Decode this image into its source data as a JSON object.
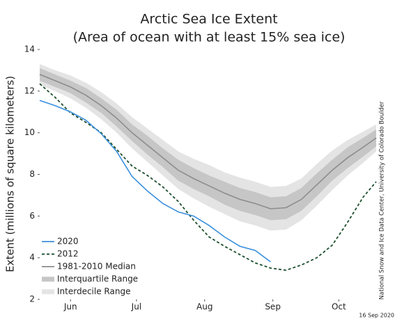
{
  "chart_data": {
    "type": "line",
    "title": "Arctic Sea Ice Extent",
    "subtitle": "(Area of ocean with at least 15% sea ice)",
    "ylabel": "Extent (millions of square kilometers)",
    "credit": "National Snow and Ice Data Center, University of Colorado Boulder",
    "date": "16 Sep 2020",
    "x": [
      152,
      159,
      166,
      173,
      180,
      187,
      194,
      201,
      208,
      215,
      222,
      229,
      236,
      243,
      250,
      257,
      264,
      271,
      278,
      285,
      292,
      299,
      305
    ],
    "xlim": [
      152,
      305
    ],
    "xticks": [
      {
        "value": 166,
        "label": "Jun"
      },
      {
        "value": 196,
        "label": "Jul"
      },
      {
        "value": 227,
        "label": "Aug"
      },
      {
        "value": 258,
        "label": "Sep"
      },
      {
        "value": 288,
        "label": "Oct"
      }
    ],
    "ylim": [
      2,
      14
    ],
    "yticks": [
      2,
      4,
      6,
      8,
      10,
      12,
      14
    ],
    "series": [
      {
        "name": "2020",
        "color": "#3a8fdc",
        "style": "solid",
        "values": [
          11.55,
          11.3,
          11.0,
          10.6,
          9.95,
          9.1,
          7.9,
          7.2,
          6.6,
          6.2,
          6.0,
          5.55,
          5.0,
          4.55,
          4.35,
          3.8,
          null,
          null,
          null,
          null,
          null,
          null,
          null
        ]
      },
      {
        "name": "2012",
        "color": "#1d4f2e",
        "style": "dashed",
        "values": [
          12.35,
          11.7,
          10.95,
          10.5,
          10.0,
          9.2,
          8.4,
          7.95,
          7.4,
          6.7,
          5.8,
          5.0,
          4.55,
          4.15,
          3.75,
          3.5,
          3.4,
          3.65,
          4.0,
          4.6,
          5.7,
          6.9,
          7.65
        ]
      },
      {
        "name": "1981-2010 Median",
        "color": "#8c8c8c",
        "style": "solid",
        "values": [
          12.8,
          12.5,
          12.2,
          11.8,
          11.3,
          10.7,
          10.0,
          9.4,
          8.8,
          8.2,
          7.8,
          7.45,
          7.1,
          6.8,
          6.6,
          6.35,
          6.4,
          6.8,
          7.5,
          8.2,
          8.8,
          9.3,
          9.75
        ]
      },
      {
        "name": "Interquartile Range",
        "color": "#c6c6c6",
        "low": [
          12.5,
          12.2,
          11.9,
          11.45,
          10.95,
          10.3,
          9.6,
          8.95,
          8.35,
          7.7,
          7.3,
          6.95,
          6.55,
          6.25,
          6.05,
          5.8,
          5.85,
          6.25,
          6.95,
          7.7,
          8.3,
          8.85,
          9.35
        ],
        "high": [
          13.1,
          12.8,
          12.5,
          12.15,
          11.65,
          11.1,
          10.4,
          9.85,
          9.25,
          8.7,
          8.3,
          7.95,
          7.65,
          7.35,
          7.15,
          6.9,
          6.95,
          7.35,
          8.05,
          8.7,
          9.3,
          9.75,
          10.15
        ]
      },
      {
        "name": "Interdecile Range",
        "color": "#e4e4e4",
        "low": [
          12.3,
          12.0,
          11.65,
          11.2,
          10.65,
          10.0,
          9.25,
          8.6,
          7.95,
          7.3,
          6.85,
          6.45,
          6.1,
          5.75,
          5.55,
          5.3,
          5.35,
          5.8,
          6.5,
          7.25,
          7.95,
          8.55,
          9.1
        ],
        "high": [
          13.3,
          13.0,
          12.75,
          12.4,
          11.95,
          11.4,
          10.75,
          10.2,
          9.65,
          9.1,
          8.75,
          8.45,
          8.1,
          7.85,
          7.65,
          7.4,
          7.45,
          7.8,
          8.5,
          9.15,
          9.65,
          10.05,
          10.4
        ]
      }
    ]
  }
}
